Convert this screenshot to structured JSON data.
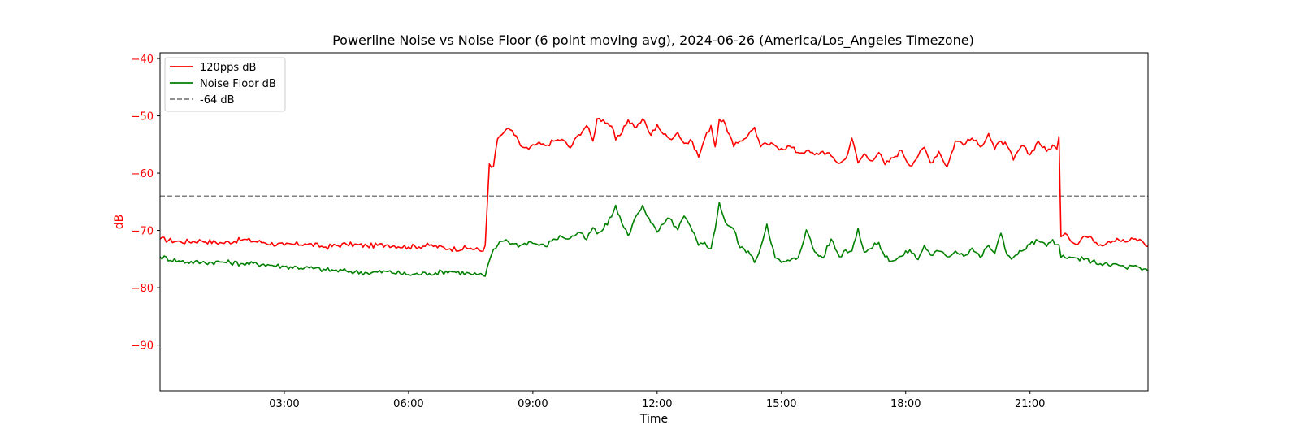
{
  "chart_data": {
    "type": "line",
    "title": "Powerline Noise vs Noise Floor (6 point moving avg), 2024-06-26 (America/Los_Angeles Timezone)",
    "xlabel": "Time",
    "ylabel": "dB",
    "x_unit": "hours",
    "xlim": [
      0.0,
      23.85
    ],
    "ylim": [
      -98,
      -39
    ],
    "x_ticks": [
      {
        "value": 3,
        "label": "03:00"
      },
      {
        "value": 6,
        "label": "06:00"
      },
      {
        "value": 9,
        "label": "09:00"
      },
      {
        "value": 12,
        "label": "12:00"
      },
      {
        "value": 15,
        "label": "15:00"
      },
      {
        "value": 18,
        "label": "18:00"
      },
      {
        "value": 21,
        "label": "21:00"
      }
    ],
    "y_ticks": [
      {
        "value": -40,
        "label": "−40"
      },
      {
        "value": -50,
        "label": "−50"
      },
      {
        "value": -60,
        "label": "−60"
      },
      {
        "value": -70,
        "label": "−70"
      },
      {
        "value": -80,
        "label": "−80"
      },
      {
        "value": -90,
        "label": "−90"
      }
    ],
    "grid": false,
    "legend_position": "top-left",
    "axis_label_color": "#ff0000",
    "reference_lines": [
      {
        "name": "-64 dB",
        "y": -64,
        "color": "#808080",
        "style": "dashed"
      }
    ],
    "series": [
      {
        "name": "120pps dB",
        "color": "#ff0000",
        "x": [
          0.0,
          0.5,
          1.0,
          1.5,
          2.0,
          2.5,
          3.0,
          3.5,
          4.0,
          4.5,
          5.0,
          5.5,
          6.0,
          6.5,
          7.0,
          7.5,
          7.8,
          7.85,
          7.95,
          8.05,
          8.15,
          8.25,
          8.35,
          8.5,
          8.7,
          8.9,
          9.1,
          9.3,
          9.5,
          9.7,
          9.9,
          10.1,
          10.3,
          10.45,
          10.55,
          10.7,
          10.9,
          11.0,
          11.15,
          11.3,
          11.5,
          11.65,
          11.85,
          12.0,
          12.15,
          12.3,
          12.5,
          12.65,
          12.85,
          13.0,
          13.15,
          13.3,
          13.4,
          13.5,
          13.65,
          13.85,
          14.0,
          14.2,
          14.35,
          14.5,
          14.65,
          14.85,
          15.0,
          15.2,
          15.4,
          15.6,
          15.8,
          16.0,
          16.2,
          16.4,
          16.55,
          16.7,
          16.85,
          17.0,
          17.15,
          17.35,
          17.5,
          17.7,
          17.9,
          18.1,
          18.3,
          18.45,
          18.6,
          18.8,
          19.0,
          19.2,
          19.45,
          19.6,
          19.8,
          20.0,
          20.15,
          20.3,
          20.45,
          20.6,
          20.8,
          21.0,
          21.2,
          21.4,
          21.55,
          21.65,
          21.7,
          21.75,
          21.9,
          22.1,
          22.3,
          22.5,
          22.7,
          22.9,
          23.1,
          23.3,
          23.5,
          23.7,
          23.85
        ],
        "y": [
          -71.5,
          -72.0,
          -71.8,
          -72.2,
          -71.6,
          -72.1,
          -72.6,
          -72.3,
          -72.9,
          -72.4,
          -72.7,
          -72.5,
          -72.9,
          -72.6,
          -73.2,
          -73.1,
          -73.6,
          -72.6,
          -58.4,
          -58.8,
          -54.0,
          -53.3,
          -52.4,
          -52.6,
          -55.2,
          -55.8,
          -54.9,
          -55.2,
          -54.4,
          -54.1,
          -55.6,
          -53.3,
          -51.7,
          -54.4,
          -50.5,
          -50.7,
          -51.8,
          -54.2,
          -53.0,
          -50.7,
          -52.0,
          -50.5,
          -53.4,
          -51.5,
          -53.2,
          -54.0,
          -52.9,
          -54.8,
          -54.5,
          -57.2,
          -53.9,
          -51.7,
          -55.4,
          -50.6,
          -51.5,
          -55.4,
          -54.4,
          -53.3,
          -52.0,
          -55.4,
          -54.9,
          -55.2,
          -55.7,
          -55.3,
          -56.4,
          -56.1,
          -56.8,
          -56.2,
          -57.0,
          -58.3,
          -57.5,
          -53.9,
          -58.2,
          -56.6,
          -57.8,
          -56.4,
          -58.5,
          -57.3,
          -56.0,
          -58.7,
          -57.0,
          -55.5,
          -58.2,
          -56.2,
          -58.9,
          -54.4,
          -54.8,
          -53.9,
          -55.4,
          -53.1,
          -55.8,
          -54.4,
          -55.3,
          -57.7,
          -55.2,
          -56.8,
          -54.4,
          -56.2,
          -55.1,
          -55.8,
          -53.6,
          -71.1,
          -70.8,
          -72.4,
          -71.0,
          -71.4,
          -72.5,
          -71.9,
          -71.4,
          -72.0,
          -71.5,
          -71.8,
          -72.8
        ]
      },
      {
        "name": "Noise Floor dB",
        "color": "#008000",
        "x": [
          0.0,
          0.5,
          1.0,
          1.5,
          2.0,
          2.5,
          3.0,
          3.5,
          4.0,
          4.5,
          5.0,
          5.5,
          6.0,
          6.5,
          7.0,
          7.5,
          7.8,
          7.85,
          7.95,
          8.05,
          8.15,
          8.25,
          8.35,
          8.5,
          8.7,
          8.9,
          9.1,
          9.3,
          9.5,
          9.7,
          9.9,
          10.1,
          10.3,
          10.45,
          10.55,
          10.7,
          10.9,
          11.0,
          11.15,
          11.3,
          11.5,
          11.65,
          11.85,
          12.0,
          12.15,
          12.3,
          12.5,
          12.65,
          12.85,
          13.0,
          13.15,
          13.3,
          13.4,
          13.5,
          13.65,
          13.85,
          14.0,
          14.2,
          14.35,
          14.5,
          14.65,
          14.85,
          15.0,
          15.2,
          15.4,
          15.6,
          15.8,
          16.0,
          16.2,
          16.4,
          16.55,
          16.7,
          16.85,
          17.0,
          17.15,
          17.35,
          17.5,
          17.7,
          17.9,
          18.1,
          18.3,
          18.45,
          18.6,
          18.8,
          19.0,
          19.2,
          19.45,
          19.6,
          19.8,
          20.0,
          20.15,
          20.3,
          20.45,
          20.6,
          20.8,
          21.0,
          21.2,
          21.4,
          21.55,
          21.65,
          21.7,
          21.75,
          21.9,
          22.1,
          22.3,
          22.5,
          22.7,
          22.9,
          23.1,
          23.3,
          23.5,
          23.7,
          23.85
        ],
        "y": [
          -74.6,
          -75.4,
          -75.6,
          -75.5,
          -75.8,
          -75.9,
          -76.3,
          -76.5,
          -76.9,
          -77.1,
          -77.4,
          -77.2,
          -77.7,
          -77.5,
          -77.1,
          -77.6,
          -77.9,
          -78.0,
          -75.3,
          -73.3,
          -72.6,
          -71.9,
          -71.6,
          -72.3,
          -72.6,
          -72.0,
          -72.4,
          -72.8,
          -71.5,
          -71.1,
          -71.4,
          -70.3,
          -71.6,
          -69.5,
          -70.6,
          -69.8,
          -67.6,
          -65.6,
          -68.8,
          -70.9,
          -67.4,
          -65.6,
          -68.7,
          -70.3,
          -68.9,
          -67.9,
          -69.9,
          -67.5,
          -70.1,
          -72.6,
          -72.1,
          -73.2,
          -69.8,
          -65.1,
          -68.6,
          -69.8,
          -73.0,
          -73.6,
          -75.6,
          -72.9,
          -68.9,
          -74.8,
          -75.6,
          -75.3,
          -74.8,
          -69.9,
          -73.7,
          -74.8,
          -71.5,
          -74.6,
          -73.4,
          -73.6,
          -69.6,
          -73.8,
          -73.2,
          -72.1,
          -74.6,
          -75.3,
          -74.5,
          -73.4,
          -75.1,
          -72.6,
          -74.3,
          -73.6,
          -74.6,
          -73.6,
          -74.3,
          -73.1,
          -74.7,
          -72.6,
          -74.0,
          -70.5,
          -74.3,
          -74.7,
          -73.6,
          -72.4,
          -71.8,
          -72.8,
          -71.6,
          -72.5,
          -72.5,
          -74.7,
          -74.9,
          -74.8,
          -75.1,
          -75.4,
          -75.8,
          -76.1,
          -75.9,
          -76.5,
          -76.2,
          -76.9,
          -77.1
        ]
      }
    ]
  }
}
